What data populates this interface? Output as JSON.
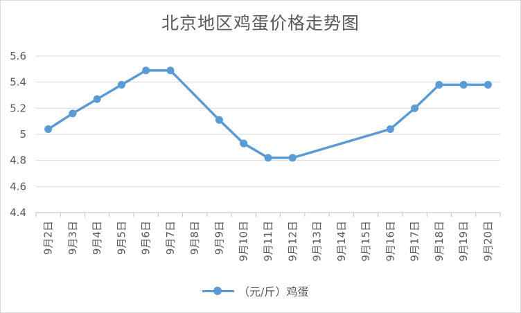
{
  "chart_data": {
    "type": "line",
    "title": "北京地区鸡蛋价格走势图",
    "categories": [
      "9月2日",
      "9月3日",
      "9月4日",
      "9月5日",
      "9月6日",
      "9月7日",
      "9月8日",
      "9月9日",
      "9月10日",
      "9月11日",
      "9月12日",
      "9月13日",
      "9月14日",
      "9月15日",
      "9月16日",
      "9月17日",
      "9月18日",
      "9月19日",
      "9月20日"
    ],
    "series": [
      {
        "name": "（元/斤）鸡蛋",
        "values": [
          5.04,
          5.16,
          5.27,
          5.38,
          5.49,
          5.49,
          null,
          5.11,
          4.93,
          4.82,
          4.82,
          null,
          null,
          null,
          5.04,
          5.2,
          5.38,
          5.38,
          5.38
        ],
        "color": "#5b9bd5"
      }
    ],
    "yticks": [
      "4.4",
      "4.6",
      "4.8",
      "5",
      "5.2",
      "5.4",
      "5.6"
    ],
    "ylim": [
      4.4,
      5.6
    ],
    "grid": true,
    "legend_position": "bottom",
    "xlabel": "",
    "ylabel": ""
  }
}
